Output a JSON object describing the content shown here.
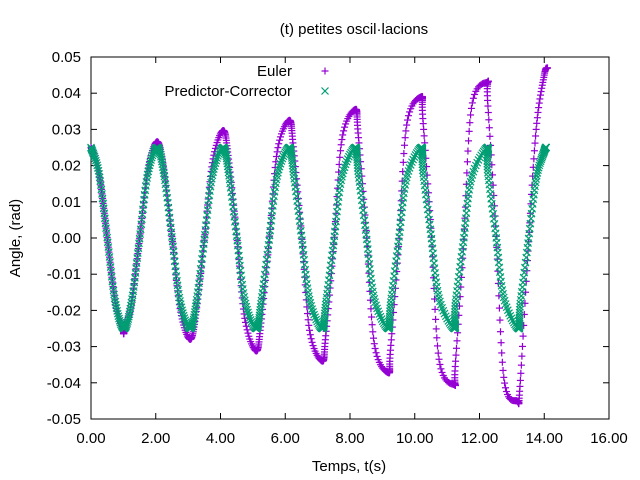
{
  "chart_data": {
    "type": "scatter",
    "title": "(t) petites oscil·lacions",
    "xlabel": "Temps, t(s)",
    "ylabel": "Angle,   (rad)",
    "xlim": [
      0.0,
      16.0
    ],
    "ylim": [
      -0.05,
      0.05
    ],
    "x_ticks": [
      0.0,
      2.0,
      4.0,
      6.0,
      8.0,
      10.0,
      12.0,
      14.0,
      16.0
    ],
    "x_tick_labels": [
      "0.00",
      "2.00",
      "4.00",
      "6.00",
      "8.00",
      "10.00",
      "12.00",
      "14.00",
      "16.00"
    ],
    "y_ticks": [
      -0.05,
      -0.04,
      -0.03,
      -0.02,
      -0.01,
      0.0,
      0.01,
      0.02,
      0.03,
      0.04,
      0.05
    ],
    "y_tick_labels": [
      "-0.05",
      "-0.04",
      "-0.03",
      "-0.02",
      "-0.01",
      "0.00",
      "0.01",
      "0.02",
      "0.03",
      "0.04",
      "0.05"
    ],
    "grid": false,
    "legend_position": "top-right",
    "series": [
      {
        "name": "Euler",
        "marker": "plus",
        "color": "#9400d3",
        "points": [
          [
            0.0,
            0.025
          ],
          [
            0.25,
            0.0177
          ],
          [
            0.5,
            0.0001
          ],
          [
            0.75,
            -0.0178
          ],
          [
            1.0,
            -0.0254
          ],
          [
            1.02,
            -0.0256
          ],
          [
            1.25,
            -0.0182
          ],
          [
            1.5,
            -0.0002
          ],
          [
            1.75,
            0.0184
          ],
          [
            2.04,
            0.0266
          ],
          [
            2.25,
            0.019
          ],
          [
            2.5,
            0.0004
          ],
          [
            2.75,
            -0.0195
          ],
          [
            3.06,
            -0.028
          ],
          [
            3.25,
            -0.0203
          ],
          [
            3.5,
            -0.0006
          ],
          [
            3.75,
            0.0208
          ],
          [
            4.08,
            0.0297
          ],
          [
            4.25,
            0.0218
          ],
          [
            4.5,
            0.0009
          ],
          [
            4.75,
            -0.0222
          ],
          [
            5.1,
            -0.0312
          ],
          [
            5.25,
            -0.0235
          ],
          [
            5.5,
            -0.0012
          ],
          [
            5.75,
            0.0238
          ],
          [
            6.12,
            0.0325
          ],
          [
            6.25,
            0.0252
          ],
          [
            6.5,
            0.0015
          ],
          [
            6.75,
            -0.0255
          ],
          [
            7.14,
            -0.034
          ],
          [
            7.25,
            -0.027
          ],
          [
            7.5,
            -0.0018
          ],
          [
            7.75,
            0.0272
          ],
          [
            8.16,
            0.0355
          ],
          [
            8.25,
            0.029
          ],
          [
            8.5,
            0.0021
          ],
          [
            8.75,
            -0.0292
          ],
          [
            9.18,
            -0.0372
          ],
          [
            9.25,
            -0.031
          ],
          [
            9.5,
            -0.0024
          ],
          [
            9.75,
            0.0312
          ],
          [
            10.2,
            0.039
          ],
          [
            10.25,
            0.033
          ],
          [
            10.5,
            0.0027
          ],
          [
            10.75,
            -0.0335
          ],
          [
            11.22,
            -0.0405
          ],
          [
            11.25,
            -0.0355
          ],
          [
            11.5,
            -0.003
          ],
          [
            11.75,
            0.0358
          ],
          [
            12.24,
            0.043
          ],
          [
            12.25,
            0.038
          ],
          [
            12.5,
            0.0033
          ],
          [
            12.75,
            -0.0385
          ],
          [
            13.16,
            -0.045
          ],
          [
            13.25,
            -0.041
          ],
          [
            13.5,
            -0.0036
          ],
          [
            13.75,
            0.03
          ],
          [
            14.0,
            0.045
          ],
          [
            14.1,
            0.047
          ]
        ]
      },
      {
        "name": "Predictor-Corrector",
        "marker": "cross",
        "color": "#009e73",
        "points": [
          [
            0.0,
            0.025
          ],
          [
            0.25,
            0.0177
          ],
          [
            0.5,
            0.0001
          ],
          [
            0.75,
            -0.0176
          ],
          [
            1.02,
            -0.025
          ],
          [
            1.25,
            -0.0178
          ],
          [
            1.5,
            -0.0002
          ],
          [
            1.75,
            0.0175
          ],
          [
            2.04,
            0.025
          ],
          [
            2.25,
            0.0179
          ],
          [
            2.5,
            0.0003
          ],
          [
            2.75,
            -0.0174
          ],
          [
            3.06,
            -0.025
          ],
          [
            3.25,
            -0.018
          ],
          [
            3.5,
            -0.0004
          ],
          [
            3.75,
            0.0173
          ],
          [
            4.08,
            0.025
          ],
          [
            4.25,
            0.0181
          ],
          [
            4.5,
            0.0005
          ],
          [
            4.75,
            -0.0172
          ],
          [
            5.1,
            -0.025
          ],
          [
            5.25,
            -0.0182
          ],
          [
            5.5,
            -0.0006
          ],
          [
            5.75,
            0.0171
          ],
          [
            6.12,
            0.025
          ],
          [
            6.25,
            0.0183
          ],
          [
            6.5,
            0.0007
          ],
          [
            6.75,
            -0.017
          ],
          [
            7.14,
            -0.025
          ],
          [
            7.25,
            -0.0184
          ],
          [
            7.5,
            -0.0008
          ],
          [
            7.75,
            0.0169
          ],
          [
            8.16,
            0.025
          ],
          [
            8.25,
            0.0185
          ],
          [
            8.5,
            0.0009
          ],
          [
            8.75,
            -0.0168
          ],
          [
            9.18,
            -0.025
          ],
          [
            9.25,
            -0.0186
          ],
          [
            9.5,
            -0.001
          ],
          [
            9.75,
            0.0167
          ],
          [
            10.2,
            0.025
          ],
          [
            10.25,
            0.0187
          ],
          [
            10.5,
            0.0011
          ],
          [
            10.75,
            -0.0166
          ],
          [
            11.22,
            -0.025
          ],
          [
            11.25,
            -0.0188
          ],
          [
            11.5,
            -0.0012
          ],
          [
            11.75,
            0.0165
          ],
          [
            12.24,
            0.025
          ],
          [
            12.25,
            0.0189
          ],
          [
            12.5,
            0.0013
          ],
          [
            12.75,
            -0.0164
          ],
          [
            13.2,
            -0.025
          ],
          [
            13.25,
            -0.019
          ],
          [
            13.5,
            -0.0014
          ],
          [
            13.75,
            0.0163
          ],
          [
            14.0,
            0.024
          ],
          [
            14.06,
            0.025
          ]
        ]
      }
    ]
  }
}
